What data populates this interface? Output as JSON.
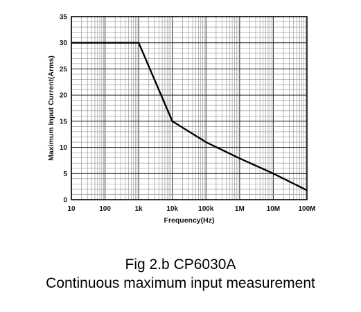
{
  "chart_data": {
    "type": "line",
    "xlabel": "Frequency(Hz)",
    "ylabel": "Maximum Input Current(Arms)",
    "xscale": "log",
    "xlim": [
      10,
      100000000
    ],
    "ylim": [
      0,
      35
    ],
    "grid": true,
    "x_tick_values": [
      10,
      100,
      1000,
      10000,
      100000,
      1000000,
      10000000,
      100000000
    ],
    "x_tick_labels": [
      "10",
      "100",
      "1k",
      "10k",
      "100k",
      "1M",
      "10M",
      "100M"
    ],
    "y_tick_values": [
      0,
      5,
      10,
      15,
      20,
      25,
      30,
      35
    ],
    "y_tick_labels": [
      "0",
      "5",
      "10",
      "15",
      "20",
      "25",
      "30",
      "35"
    ],
    "series": [
      {
        "x": [
          10,
          1000,
          10000,
          100000,
          1000000,
          10000000,
          100000000
        ],
        "y": [
          30,
          30,
          15,
          11,
          7.9,
          5,
          1.8
        ]
      }
    ],
    "line_color": "#000000"
  },
  "caption": {
    "line1": "Fig 2.b CP6030A",
    "line2": "Continuous maximum input measurement"
  }
}
